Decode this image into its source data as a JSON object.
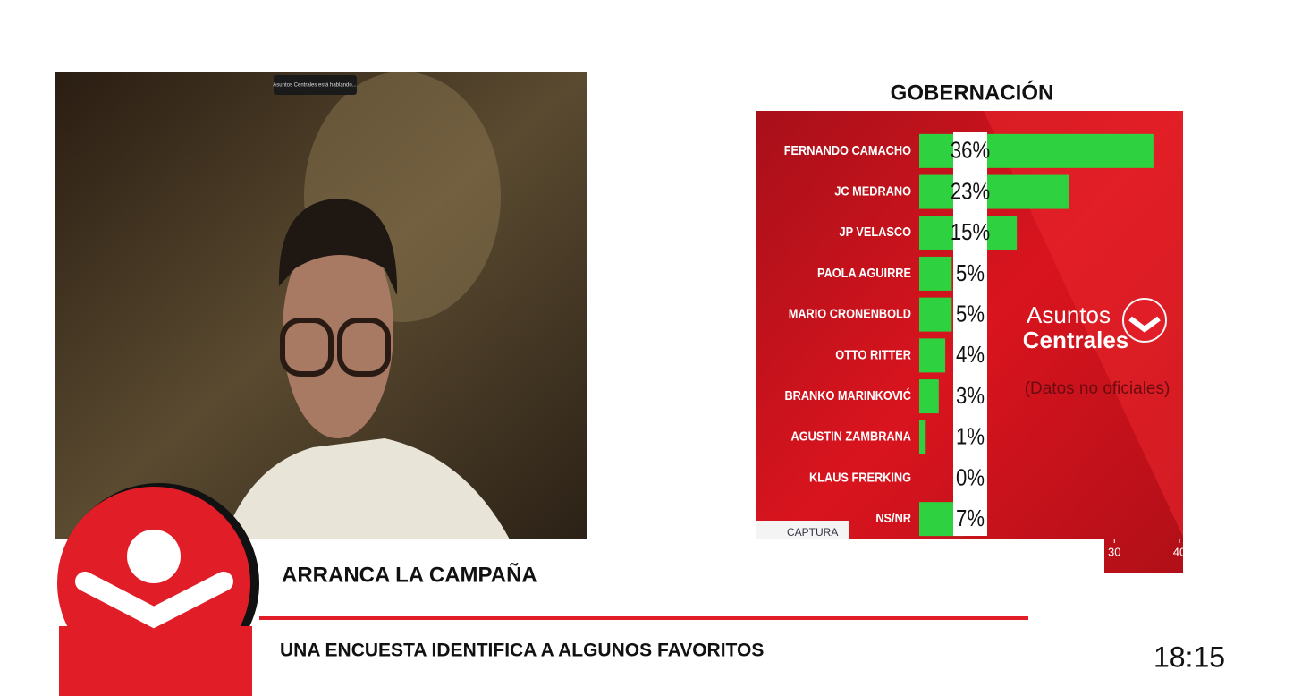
{
  "video": {
    "caption": "Asuntos Centrales está hablando..."
  },
  "chart_data": {
    "type": "bar",
    "orientation": "horizontal",
    "title": "GOBERNACIÓN",
    "categories": [
      "FERNANDO CAMACHO",
      "JC MEDRANO",
      "JP VELASCO",
      "PAOLA AGUIRRE",
      "MARIO CRONENBOLD",
      "OTTO RITTER",
      "BRANKO MARINKOVIĆ",
      "AGUSTIN ZAMBRANA",
      "KLAUS FRERKING",
      "NS/NR"
    ],
    "values": [
      36,
      23,
      15,
      5,
      5,
      4,
      3,
      1,
      0,
      7
    ],
    "value_labels": [
      "36%",
      "23%",
      "15%",
      "5%",
      "5%",
      "4%",
      "3%",
      "1%",
      "0%",
      "7%"
    ],
    "color": "#2ed13f",
    "xlim": [
      0,
      40
    ],
    "xticks": [
      30,
      40
    ],
    "annotations": [
      "Asuntos",
      "Centrales",
      "(Datos no oficiales)"
    ],
    "source": "CAPTURA"
  },
  "lower_third": {
    "headline": "ARRANCA LA CAMPAÑA",
    "subheadline": "UNA ENCUESTA IDENTIFICA A ALGUNOS FAVORITOS"
  },
  "clock": "18:15"
}
